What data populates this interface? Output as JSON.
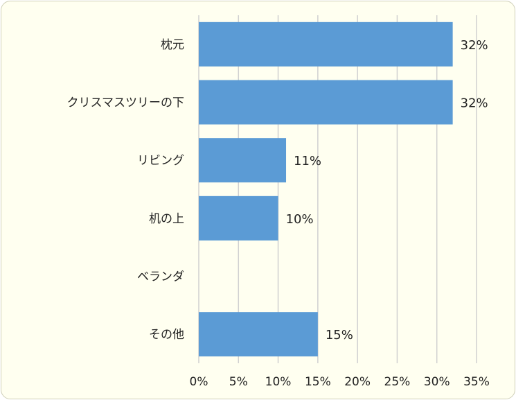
{
  "chart_data": {
    "type": "bar",
    "orientation": "horizontal",
    "categories": [
      "枕元",
      "クリスマスツリーの下",
      "リビング",
      "机の上",
      "ベランダ",
      "その他"
    ],
    "values": [
      32,
      32,
      11,
      10,
      0,
      15
    ],
    "data_labels": [
      "32%",
      "32%",
      "11%",
      "10%",
      "",
      "15%"
    ],
    "xlim": [
      0,
      35
    ],
    "x_ticks": [
      0,
      5,
      10,
      15,
      20,
      25,
      30,
      35
    ],
    "x_tick_labels": [
      "0%",
      "5%",
      "10%",
      "15%",
      "20%",
      "25%",
      "30%",
      "35%"
    ],
    "grid": "vertical",
    "legend": "none",
    "colors": {
      "bar": "#5b9bd5",
      "grid": "#d0d0d0",
      "background": "#fffff0",
      "text": "#222222"
    }
  }
}
